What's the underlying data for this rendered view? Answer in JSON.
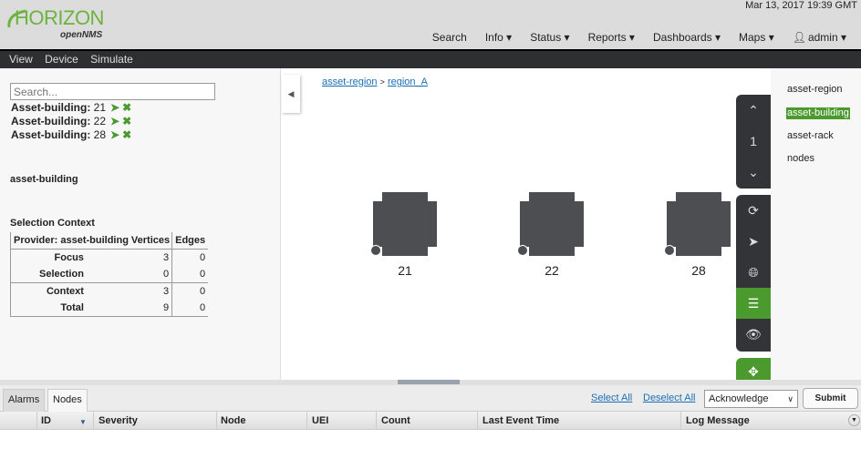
{
  "header": {
    "logo_text": "HORIZON",
    "logo_sub": "openNMS",
    "datetime": "Mar 13, 2017 19:39 GMT",
    "nav": [
      "Search",
      "Info ▾",
      "Status ▾",
      "Reports ▾",
      "Dashboards ▾",
      "Maps ▾",
      "admin ▾"
    ]
  },
  "subnav": [
    "View",
    "Device",
    "Simulate"
  ],
  "left": {
    "search_placeholder": "Search...",
    "focus": [
      {
        "label": "Asset-building:",
        "value": "21"
      },
      {
        "label": "Asset-building:",
        "value": "22"
      },
      {
        "label": "Asset-building:",
        "value": "28"
      }
    ],
    "layer_title": "asset-building",
    "selection_title": "Selection Context",
    "table": {
      "headers": [
        "Provider: asset-building",
        "Vertices",
        "Edges"
      ],
      "rows": [
        [
          "Focus",
          "3",
          "0"
        ],
        [
          "Selection",
          "0",
          "0"
        ],
        [
          "Context",
          "3",
          "0"
        ],
        [
          "Total",
          "9",
          "0"
        ]
      ]
    }
  },
  "breadcrumbs": [
    "asset-region",
    "region_A"
  ],
  "vertices": [
    "21",
    "22",
    "28"
  ],
  "toolbar": {
    "szl": "1"
  },
  "layers": [
    "asset-region",
    "asset-building",
    "asset-rack",
    "nodes"
  ],
  "colors": {
    "accent": "#4a9a2e",
    "dark": "#333438"
  },
  "bottom": {
    "tabs": [
      "Alarms",
      "Nodes"
    ],
    "select_all": "Select All",
    "deselect_all": "Deselect All",
    "action": "Acknowledge",
    "submit": "Submit",
    "columns": [
      "ID",
      "Severity",
      "Node",
      "UEI",
      "Count",
      "Last Event Time",
      "Log Message"
    ]
  }
}
